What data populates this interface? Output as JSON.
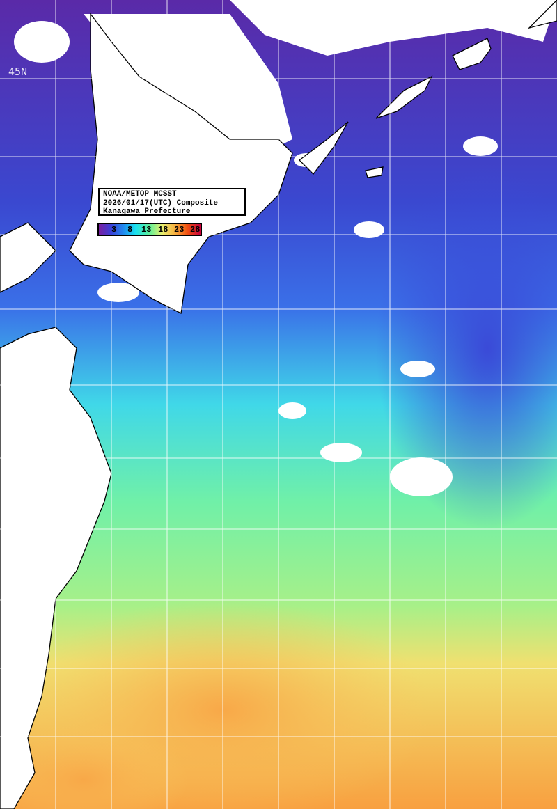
{
  "title": {
    "line1": "NOAA/METOP MCSST",
    "line2": "2026/01/17(UTC) Composite",
    "line3": "Kanagawa Prefecture"
  },
  "legend": {
    "ticks": [
      "3",
      "8",
      "13",
      "18",
      "23",
      "28"
    ],
    "colors": [
      "#7a1fa0",
      "#3a3fd8",
      "#1f8ff0",
      "#19e0f0",
      "#60f098",
      "#e8f070",
      "#f8b040",
      "#f05010",
      "#c8003c"
    ]
  },
  "grid": {
    "lat_label": "45N"
  },
  "colors": {
    "land": "#ffffff",
    "cloud": "#ffffff",
    "coast": "#000000",
    "gridline": "#ffffff"
  }
}
